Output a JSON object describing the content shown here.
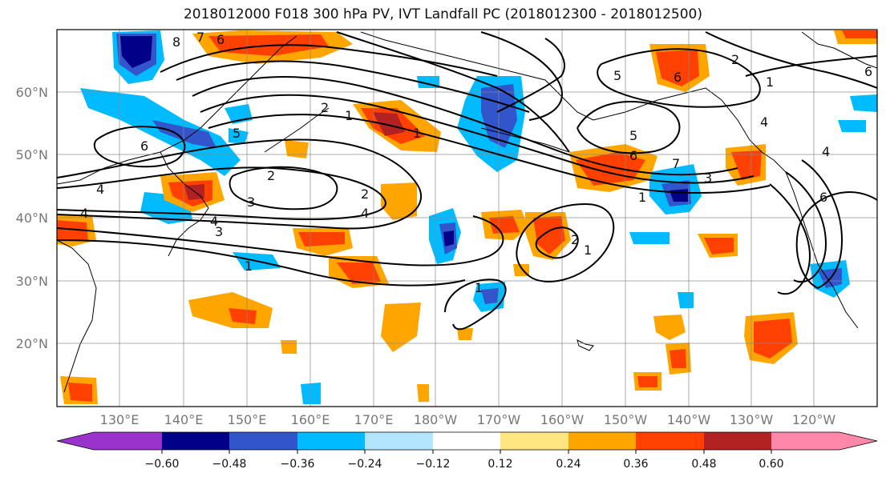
{
  "title": "2018012000 F018 300 hPa PV, IVT Landfall PC (2018012300 - 2018012500)",
  "lat_labels": [
    "60°N",
    "50°N",
    "40°N",
    "30°N",
    "20°N"
  ],
  "lon_labels": [
    "130°E",
    "140°E",
    "150°E",
    "160°E",
    "170°E",
    "180°W",
    "170°W",
    "160°W",
    "150°W",
    "140°W",
    "130°W",
    "120°W"
  ],
  "colorbar": {
    "ticks": [
      "−0.60",
      "−0.48",
      "−0.36",
      "−0.24",
      "−0.12",
      "0.12",
      "0.24",
      "0.36",
      "0.48",
      "0.60"
    ],
    "colors": [
      "#9933cc",
      "#000088",
      "#3355cc",
      "#00bbff",
      "#b3e5ff",
      "#ffffff",
      "#ffe680",
      "#ffa500",
      "#ff4000",
      "#b22222",
      "#ff88aa"
    ]
  },
  "contour_labels": [
    "8",
    "7",
    "6",
    "6",
    "5",
    "4",
    "4",
    "4",
    "3",
    "3",
    "2",
    "2",
    "1",
    "1",
    "1",
    "2",
    "4",
    "5",
    "6",
    "7",
    "3",
    "1",
    "2",
    "1",
    "6",
    "2",
    "1",
    "4",
    "5",
    "6",
    "4",
    "1",
    "6"
  ]
}
